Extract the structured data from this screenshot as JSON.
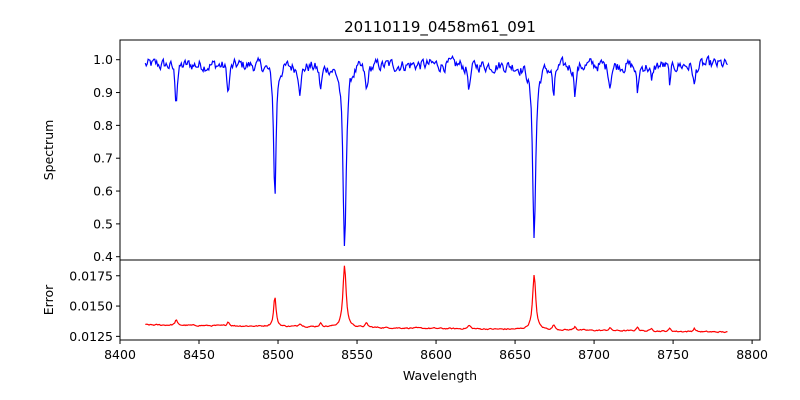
{
  "title": "20110119_0458m61_091",
  "chart_data": [
    {
      "type": "line",
      "panel": "spectrum",
      "ylabel": "Spectrum",
      "xlim": [
        8400,
        8805
      ],
      "ylim": [
        0.39,
        1.06
      ],
      "yticks": [
        "0.4",
        "0.5",
        "0.6",
        "0.7",
        "0.8",
        "0.9",
        "1.0"
      ],
      "color": "#0000ff",
      "continuum": 0.985,
      "x_range": [
        8416,
        8785
      ],
      "features": [
        {
          "center": 8498.0,
          "depth": 0.41,
          "width": 0.9
        },
        {
          "center": 8542.1,
          "depth": 0.57,
          "width": 1.2
        },
        {
          "center": 8662.1,
          "depth": 0.52,
          "width": 1.2
        },
        {
          "center": 8435.5,
          "depth": 0.11,
          "width": 0.8
        },
        {
          "center": 8468.5,
          "depth": 0.09,
          "width": 0.8
        },
        {
          "center": 8514.0,
          "depth": 0.07,
          "width": 1.0
        },
        {
          "center": 8527.0,
          "depth": 0.07,
          "width": 1.0
        },
        {
          "center": 8556.0,
          "depth": 0.08,
          "width": 1.0
        },
        {
          "center": 8621.0,
          "depth": 0.07,
          "width": 1.0
        },
        {
          "center": 8674.5,
          "depth": 0.1,
          "width": 0.8
        },
        {
          "center": 8688.0,
          "depth": 0.08,
          "width": 0.8
        },
        {
          "center": 8710.0,
          "depth": 0.06,
          "width": 0.8
        },
        {
          "center": 8727.5,
          "depth": 0.09,
          "width": 0.8
        },
        {
          "center": 8736.5,
          "depth": 0.06,
          "width": 0.8
        },
        {
          "center": 8748.0,
          "depth": 0.06,
          "width": 0.8
        },
        {
          "center": 8763.5,
          "depth": 0.07,
          "width": 0.8
        }
      ],
      "noise_amplitude": 0.05
    },
    {
      "type": "line",
      "panel": "error",
      "xlabel": "Wavelength",
      "ylabel": "Error",
      "xlim": [
        8400,
        8805
      ],
      "xticks": [
        8400,
        8450,
        8500,
        8550,
        8600,
        8650,
        8700,
        8750,
        8800
      ],
      "ylim": [
        0.0122,
        0.0188
      ],
      "yticks": [
        "0.0125",
        "0.0150",
        "0.0175"
      ],
      "color": "#ff0000",
      "x_range": [
        8416,
        8785
      ],
      "baseline_start": 0.01345,
      "baseline_end": 0.01285,
      "features": [
        {
          "center": 8498.0,
          "height": 0.0025,
          "width": 0.9
        },
        {
          "center": 8542.1,
          "height": 0.0051,
          "width": 1.2
        },
        {
          "center": 8662.1,
          "height": 0.0045,
          "width": 1.2
        }
      ],
      "noise_amplitude": 0.00018
    }
  ]
}
